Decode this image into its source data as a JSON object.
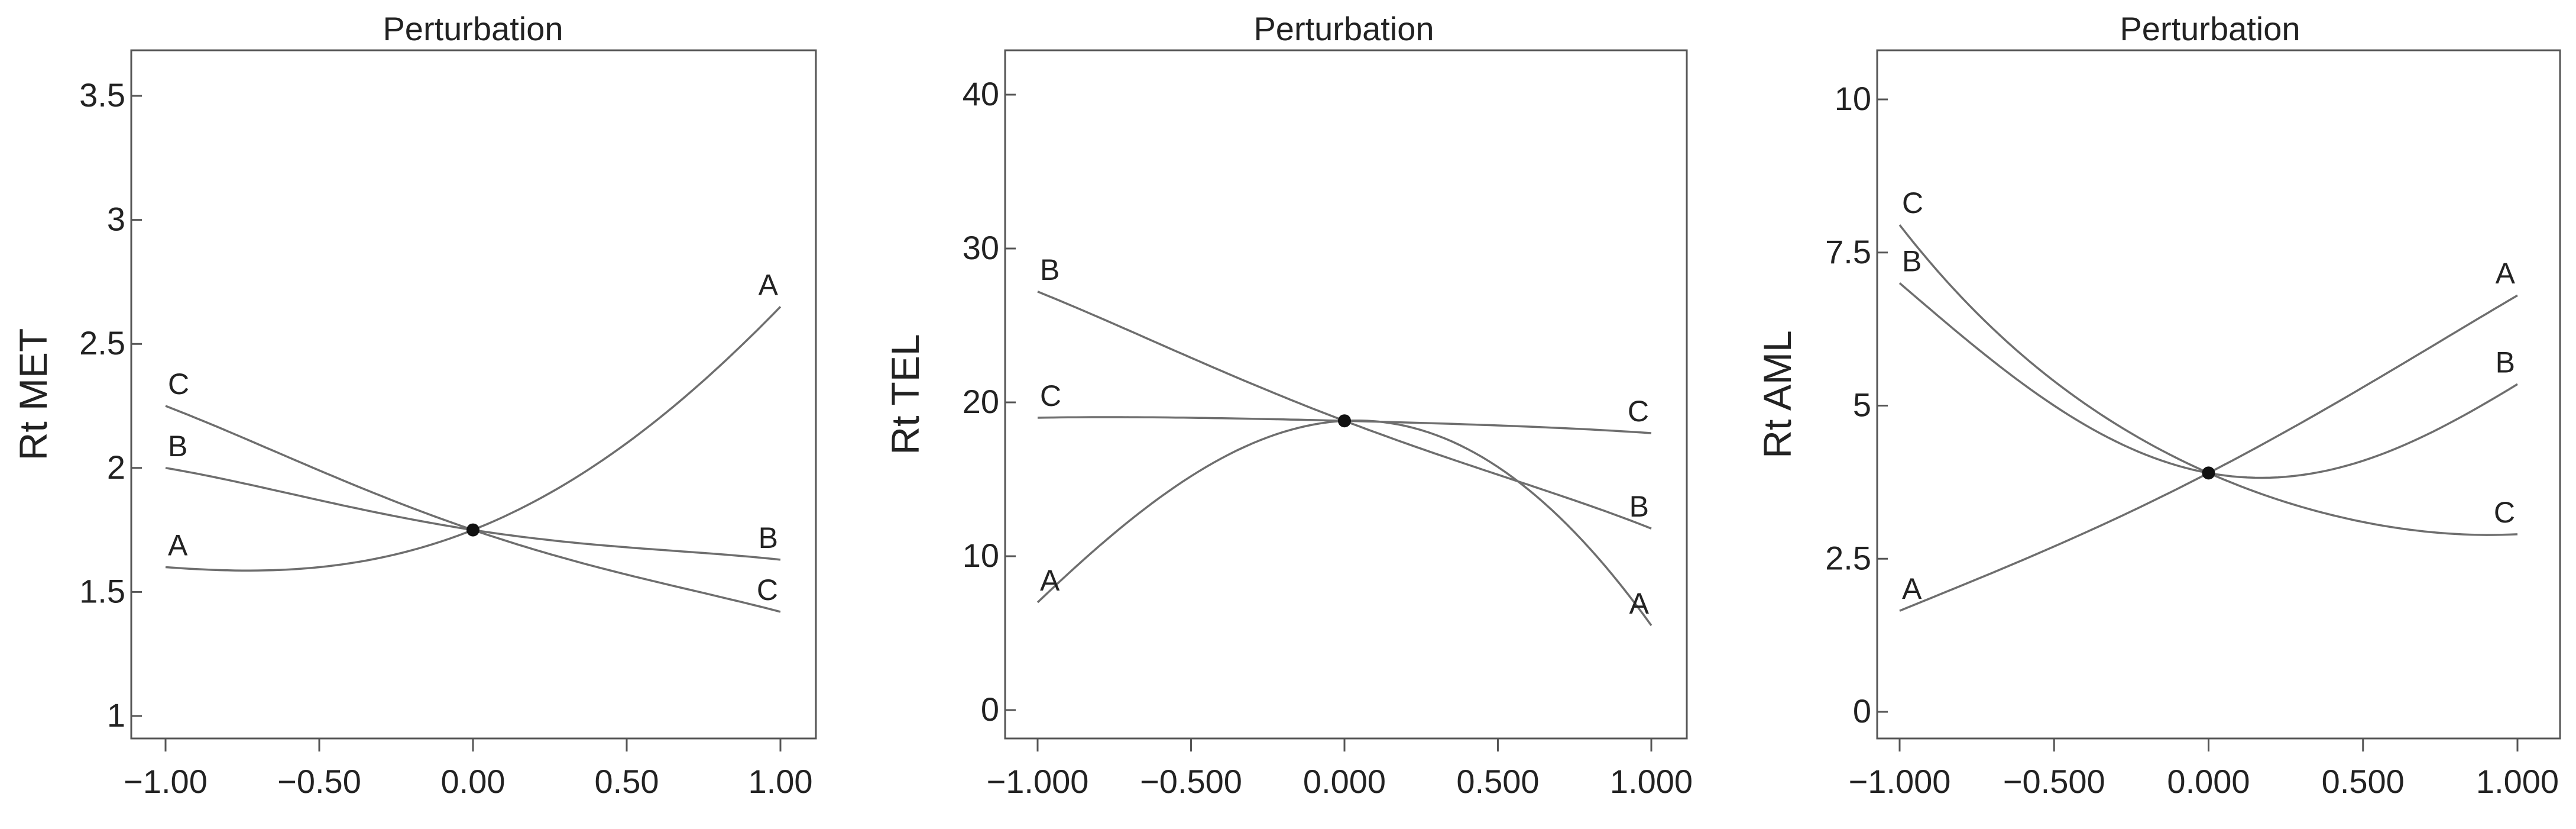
{
  "chart_data": [
    {
      "type": "line",
      "title": "Perturbation",
      "ylabel": "Rt MET",
      "xlim": [
        -1.0,
        1.0
      ],
      "ylim": [
        1.0,
        3.5
      ],
      "xticks": [
        -1.0,
        -0.5,
        0.0,
        0.5,
        1.0
      ],
      "xtick_labels": [
        "−1.00",
        "−0.50",
        "0.00",
        "0.50",
        "1.00"
      ],
      "yticks": [
        1.0,
        1.5,
        2.0,
        2.5,
        3.0,
        3.5
      ],
      "ytick_labels": [
        "1",
        "1.5",
        "2",
        "2.5",
        "3",
        "3.5"
      ],
      "center_point": {
        "x": 0.0,
        "y": 1.75
      },
      "grid": false,
      "series": [
        {
          "name": "A",
          "x": [
            -1.0,
            -0.5,
            0.0,
            0.5,
            1.0
          ],
          "y": [
            1.6,
            1.6,
            1.75,
            2.1,
            2.65
          ]
        },
        {
          "name": "B",
          "x": [
            -1.0,
            -0.5,
            0.0,
            0.5,
            1.0
          ],
          "y": [
            2.0,
            1.87,
            1.75,
            1.68,
            1.63
          ]
        },
        {
          "name": "C",
          "x": [
            -1.0,
            -0.5,
            0.0,
            0.5,
            1.0
          ],
          "y": [
            2.25,
            1.99,
            1.75,
            1.57,
            1.42
          ]
        }
      ]
    },
    {
      "type": "line",
      "title": "Perturbation",
      "ylabel": "Rt TEL",
      "xlim": [
        -1.0,
        1.0
      ],
      "ylim": [
        0,
        40
      ],
      "xticks": [
        -1.0,
        -0.5,
        0.0,
        0.5,
        1.0
      ],
      "xtick_labels": [
        "−1.000",
        "−0.500",
        "0.000",
        "0.500",
        "1.000"
      ],
      "yticks": [
        0,
        10,
        20,
        30,
        40
      ],
      "ytick_labels": [
        "0",
        "10",
        "20",
        "30",
        "40"
      ],
      "center_point": {
        "x": 0.0,
        "y": 18.8
      },
      "grid": false,
      "series": [
        {
          "name": "A",
          "x": [
            -1.0,
            -0.5,
            0.0,
            0.5,
            1.0
          ],
          "y": [
            7.0,
            15.2,
            18.8,
            15.8,
            5.5
          ]
        },
        {
          "name": "B",
          "x": [
            -1.0,
            -0.5,
            0.0,
            0.5,
            1.0
          ],
          "y": [
            27.2,
            22.9,
            18.8,
            15.3,
            11.8
          ]
        },
        {
          "name": "C",
          "x": [
            -1.0,
            -0.5,
            0.0,
            0.5,
            1.0
          ],
          "y": [
            19.0,
            19.0,
            18.8,
            18.5,
            18.0
          ]
        }
      ]
    },
    {
      "type": "line",
      "title": "Perturbation",
      "ylabel": "Rt AML",
      "xlim": [
        -1.0,
        1.0
      ],
      "ylim": [
        0,
        10
      ],
      "xticks": [
        -1.0,
        -0.5,
        0.0,
        0.5,
        1.0
      ],
      "xtick_labels": [
        "−1.000",
        "−0.500",
        "0.000",
        "0.500",
        "1.000"
      ],
      "yticks": [
        0,
        2.5,
        5,
        7.5,
        10
      ],
      "ytick_labels": [
        "0",
        "2.5",
        "5",
        "7.5",
        "10"
      ],
      "center_point": {
        "x": 0.0,
        "y": 3.9
      },
      "grid": false,
      "series": [
        {
          "name": "A",
          "x": [
            -1.0,
            -0.5,
            0.0,
            0.5,
            1.0
          ],
          "y": [
            1.65,
            2.7,
            3.9,
            5.3,
            6.8
          ]
        },
        {
          "name": "B",
          "x": [
            -1.0,
            -0.5,
            0.0,
            0.5,
            1.0
          ],
          "y": [
            7.0,
            5.0,
            3.9,
            4.1,
            5.35
          ]
        },
        {
          "name": "C",
          "x": [
            -1.0,
            -0.5,
            0.0,
            0.5,
            1.0
          ],
          "y": [
            7.95,
            5.4,
            3.9,
            3.1,
            2.9
          ]
        }
      ]
    }
  ]
}
